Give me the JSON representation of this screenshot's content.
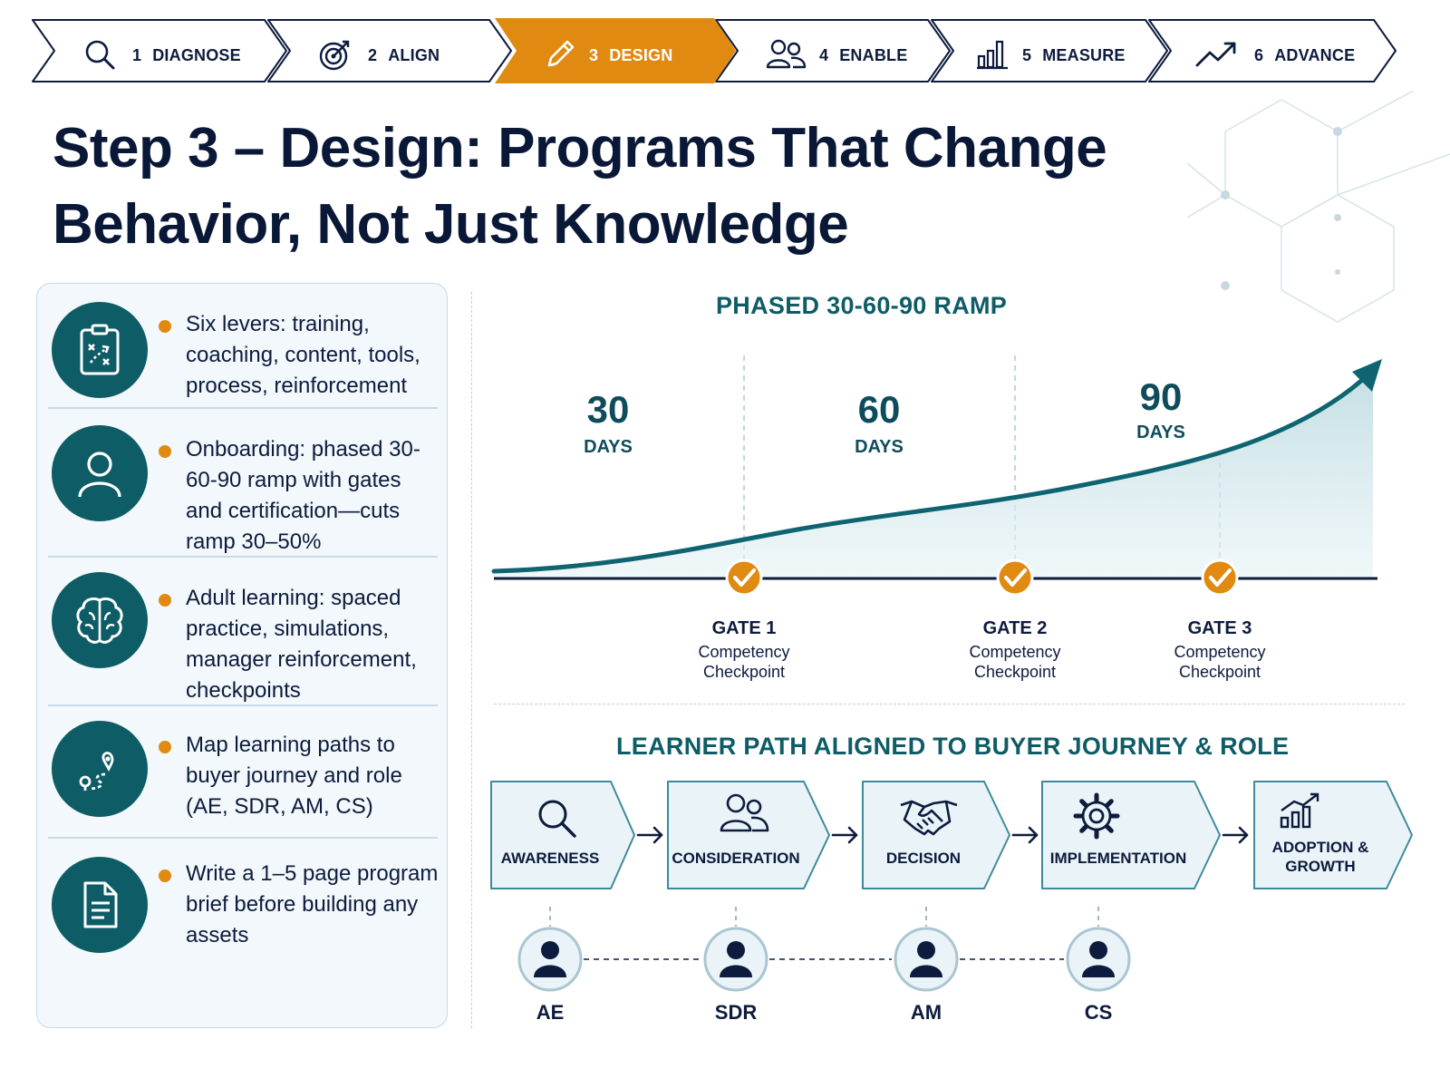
{
  "steps": [
    {
      "num": "1",
      "label": "DIAGNOSE",
      "icon": "search-icon",
      "active": false
    },
    {
      "num": "2",
      "label": "ALIGN",
      "icon": "target-icon",
      "active": false
    },
    {
      "num": "3",
      "label": "DESIGN",
      "icon": "pencil-icon",
      "active": true
    },
    {
      "num": "4",
      "label": "ENABLE",
      "icon": "people-icon",
      "active": false
    },
    {
      "num": "5",
      "label": "MEASURE",
      "icon": "bar-chart-icon",
      "active": false
    },
    {
      "num": "6",
      "label": "ADVANCE",
      "icon": "trend-up-icon",
      "active": false
    }
  ],
  "title": {
    "line1": "Step 3 – Design: Programs That Change",
    "line2": "Behavior, Not Just Knowledge"
  },
  "levers": [
    {
      "icon": "playbook-clipboard-icon",
      "text": "Six levers: training, coaching, content, tools, process, reinforcement"
    },
    {
      "icon": "person-icon",
      "text": "Onboarding: phased 30-60-90 ramp with gates and certification—cuts ramp 30–50%"
    },
    {
      "icon": "brain-icon",
      "text": "Adult learning: spaced practice, simulations, manager reinforcement, checkpoints"
    },
    {
      "icon": "route-map-icon",
      "text": "Map learning paths to buyer journey and role (AE, SDR, AM, CS)"
    },
    {
      "icon": "document-icon",
      "text": "Write a 1–5 page program brief before building any assets"
    }
  ],
  "ramp": {
    "title": "PHASED 30-60-90 RAMP",
    "phases": [
      {
        "num": "30",
        "unit": "DAYS"
      },
      {
        "num": "60",
        "unit": "DAYS"
      },
      {
        "num": "90",
        "unit": "DAYS"
      }
    ],
    "gates": [
      {
        "title": "GATE 1",
        "line1": "Competency",
        "line2": "Checkpoint"
      },
      {
        "title": "GATE 2",
        "line1": "Competency",
        "line2": "Checkpoint"
      },
      {
        "title": "GATE 3",
        "line1": "Competency",
        "line2": "Checkpoint"
      }
    ]
  },
  "path": {
    "title": "LEARNER PATH ALIGNED TO BUYER JOURNEY & ROLE",
    "stages": [
      {
        "line1": "AWARENESS",
        "line2": "",
        "icon": "search-icon"
      },
      {
        "line1": "CONSIDERATION",
        "line2": "",
        "icon": "people-icon"
      },
      {
        "line1": "DECISION",
        "line2": "",
        "icon": "handshake-icon"
      },
      {
        "line1": "IMPLEMENTATION",
        "line2": "",
        "icon": "gear-icon"
      },
      {
        "line1": "ADOPTION &",
        "line2": "GROWTH",
        "icon": "growth-chart-icon"
      }
    ],
    "roles": [
      "AE",
      "SDR",
      "AM",
      "CS"
    ]
  },
  "colors": {
    "navy": "#0d1b3e",
    "teal": "#0e5c66",
    "orange": "#e08a12",
    "panel": "#f2f8fb"
  }
}
